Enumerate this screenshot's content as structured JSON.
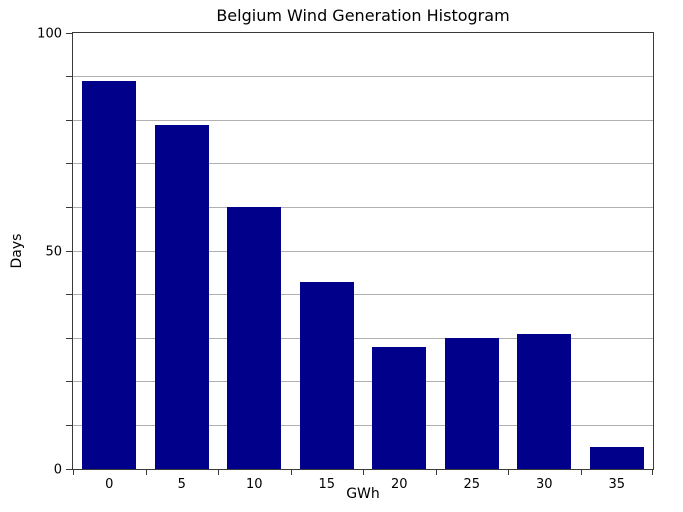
{
  "chart_data": {
    "type": "bar",
    "title": "Belgium Wind Generation Histogram",
    "xlabel": "GWh",
    "ylabel": "Days",
    "categories": [
      "0",
      "5",
      "10",
      "15",
      "20",
      "25",
      "30",
      "35"
    ],
    "values": [
      89,
      79,
      60,
      43,
      28,
      30,
      31,
      5
    ],
    "ylim": [
      0,
      100
    ],
    "ytick_values": [
      0,
      50,
      100
    ],
    "ytick_labels": [
      "0",
      "50",
      "100"
    ],
    "grid": true,
    "grid_interval": 10,
    "xticks_at": "bin-edges",
    "legend_position": "none",
    "bar_width_fraction": 0.745,
    "colors": {
      "bar": "#00008B",
      "grid": "#b0b0b0",
      "axis": "#3a3a3a",
      "text": "#000000",
      "background": "#ffffff"
    }
  }
}
